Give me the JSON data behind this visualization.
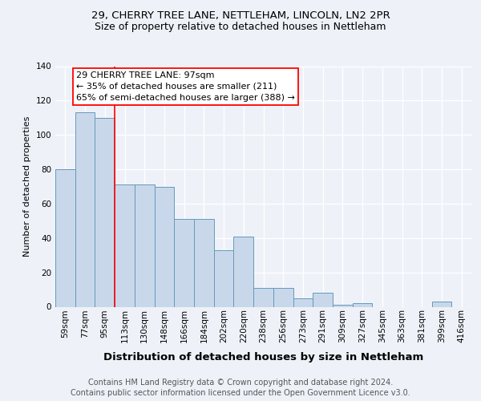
{
  "title_line1": "29, CHERRY TREE LANE, NETTLEHAM, LINCOLN, LN2 2PR",
  "title_line2": "Size of property relative to detached houses in Nettleham",
  "xlabel": "Distribution of detached houses by size in Nettleham",
  "ylabel": "Number of detached properties",
  "categories": [
    "59sqm",
    "77sqm",
    "95sqm",
    "113sqm",
    "130sqm",
    "148sqm",
    "166sqm",
    "184sqm",
    "202sqm",
    "220sqm",
    "238sqm",
    "256sqm",
    "273sqm",
    "291sqm",
    "309sqm",
    "327sqm",
    "345sqm",
    "363sqm",
    "381sqm",
    "399sqm",
    "416sqm"
  ],
  "values": [
    80,
    113,
    110,
    71,
    71,
    70,
    51,
    51,
    33,
    41,
    11,
    11,
    5,
    8,
    1,
    2,
    0,
    0,
    0,
    3,
    0
  ],
  "bar_color": "#c8d8ea",
  "bar_edge_color": "#6699bb",
  "red_line_x": 2.5,
  "annotation_line1": "29 CHERRY TREE LANE: 97sqm",
  "annotation_line2": "← 35% of detached houses are smaller (211)",
  "annotation_line3": "65% of semi-detached houses are larger (388) →",
  "ylim": [
    0,
    140
  ],
  "yticks": [
    0,
    20,
    40,
    60,
    80,
    100,
    120,
    140
  ],
  "footer_line1": "Contains HM Land Registry data © Crown copyright and database right 2024.",
  "footer_line2": "Contains public sector information licensed under the Open Government Licence v3.0.",
  "background_color": "#eef2f8",
  "plot_bg_color": "#eef2f8",
  "title_fontsize": 9.5,
  "subtitle_fontsize": 9,
  "xlabel_fontsize": 9.5,
  "ylabel_fontsize": 8,
  "tick_fontsize": 7.5,
  "annot_fontsize": 8,
  "footer_fontsize": 7
}
